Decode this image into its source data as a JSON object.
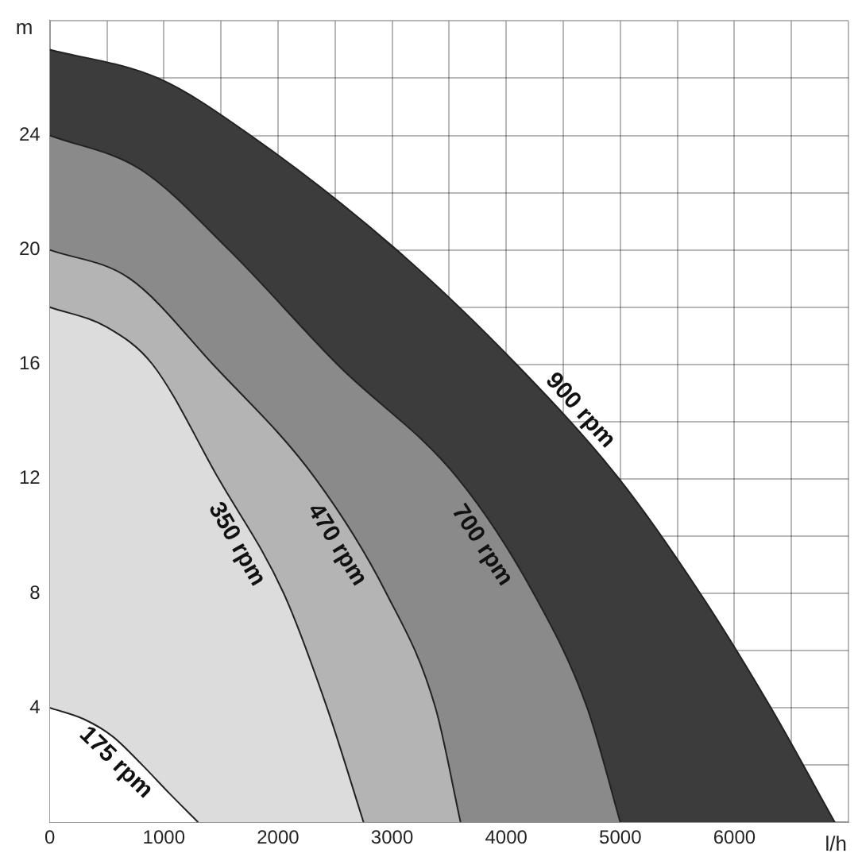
{
  "chart_data": {
    "type": "area",
    "xlabel": "l/h",
    "ylabel": "m",
    "xlim": [
      0,
      7000
    ],
    "ylim": [
      0,
      28
    ],
    "xticks": [
      0,
      {
        "value": 500,
        "label": null
      },
      1000,
      {
        "value": 1500,
        "label": null
      },
      2000,
      {
        "value": 2500,
        "label": null
      },
      3000,
      {
        "value": 3500,
        "label": null
      },
      4000,
      {
        "value": 4500,
        "label": null
      },
      5000,
      {
        "value": 5500,
        "label": null
      },
      6000,
      {
        "value": 6500,
        "label": null
      },
      {
        "value": 7000,
        "label": null
      }
    ],
    "yticks": [
      {
        "value": 0,
        "label": null
      },
      {
        "value": 2,
        "label": null
      },
      4,
      {
        "value": 6,
        "label": null
      },
      8,
      {
        "value": 10,
        "label": null
      },
      12,
      {
        "value": 14,
        "label": null
      },
      16,
      {
        "value": 18,
        "label": null
      },
      20,
      {
        "value": 22,
        "label": null
      },
      24,
      {
        "value": 26,
        "label": null
      },
      {
        "value": 28,
        "label": null
      }
    ],
    "grid": true,
    "legend": false,
    "series": [
      {
        "name": "175 rpm",
        "color": "#ffffff",
        "x": [
          0,
          300,
          550,
          810,
          1050,
          1300
        ],
        "values": [
          4,
          3.6,
          3,
          2,
          1,
          0
        ]
      },
      {
        "name": "350 rpm",
        "color": "#dcdcdc",
        "x": [
          0,
          500,
          900,
          1480,
          2050,
          2430,
          2750
        ],
        "values": [
          18,
          17.3,
          16,
          12,
          8,
          4,
          0
        ]
      },
      {
        "name": "470 rpm",
        "color": "#b4b4b4",
        "x": [
          0,
          700,
          1430,
          2330,
          2950,
          3380,
          3600
        ],
        "values": [
          20,
          19,
          16,
          12,
          8,
          4,
          0
        ]
      },
      {
        "name": "700 rpm",
        "color": "#8a8a8a",
        "x": [
          0,
          800,
          1570,
          2520,
          3580,
          4240,
          4710,
          5000
        ],
        "values": [
          24,
          22.8,
          20,
          16,
          12,
          8,
          4,
          0
        ]
      },
      {
        "name": "900 rpm",
        "color": "#3c3c3c",
        "x": [
          0,
          950,
          1760,
          3040,
          4090,
          4990,
          5700,
          6320,
          6880
        ],
        "values": [
          27,
          26,
          24,
          20,
          16,
          12,
          8,
          4,
          0
        ]
      }
    ]
  }
}
